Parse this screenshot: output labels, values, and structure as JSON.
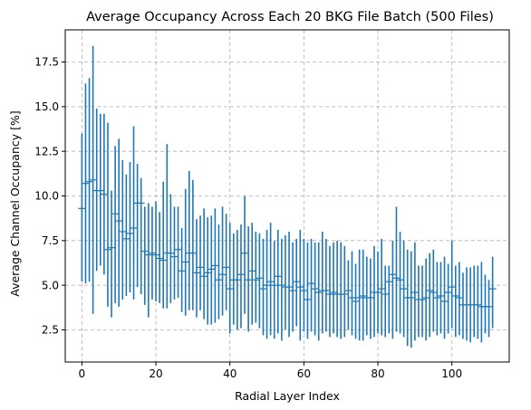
{
  "chart_data": {
    "type": "errorbar",
    "title": "Average Occupancy Across Each 20 BKG File Batch (500 Files)",
    "xlabel": "Radial Layer Index",
    "ylabel": "Average Channel Occupancy [%]",
    "xlim": [
      -4.5,
      115.5
    ],
    "ylim": [
      0.7,
      19.3
    ],
    "xticks": [
      0,
      20,
      40,
      60,
      80,
      100
    ],
    "yticks": [
      2.5,
      5.0,
      7.5,
      10.0,
      12.5,
      15.0,
      17.5
    ],
    "ytick_labels": [
      "2.5",
      "5.0",
      "7.5",
      "10.0",
      "12.5",
      "15.0",
      "17.5"
    ],
    "grid": true,
    "color": "#1f77b4",
    "series": [
      {
        "x": [
          0,
          1,
          2,
          3,
          4,
          5,
          6,
          7,
          8,
          9,
          10,
          11,
          12,
          13,
          14,
          15,
          16,
          17,
          18,
          19,
          20,
          21,
          22,
          23,
          24,
          25,
          26,
          27,
          28,
          29,
          30,
          31,
          32,
          33,
          34,
          35,
          36,
          37,
          38,
          39,
          40,
          41,
          42,
          43,
          44,
          45,
          46,
          47,
          48,
          49,
          50,
          51,
          52,
          53,
          54,
          55,
          56,
          57,
          58,
          59,
          60,
          61,
          62,
          63,
          64,
          65,
          66,
          67,
          68,
          69,
          70,
          71,
          72,
          73,
          74,
          75,
          76,
          77,
          78,
          79,
          80,
          81,
          82,
          83,
          84,
          85,
          86,
          87,
          88,
          89,
          90,
          91,
          92,
          93,
          94,
          95,
          96,
          97,
          98,
          99,
          100,
          101,
          102,
          103,
          104,
          105,
          106,
          107,
          108,
          109,
          110,
          111
        ],
        "y": [
          9.3,
          10.7,
          10.8,
          10.9,
          10.3,
          10.3,
          10.1,
          7.0,
          7.1,
          9.0,
          8.6,
          8.0,
          7.6,
          7.9,
          8.2,
          9.6,
          9.6,
          6.9,
          6.7,
          6.8,
          6.7,
          6.5,
          6.4,
          6.8,
          6.8,
          6.6,
          7.0,
          5.8,
          6.3,
          6.8,
          6.8,
          5.7,
          6.0,
          5.5,
          5.7,
          5.9,
          6.1,
          5.3,
          5.6,
          6.0,
          4.8,
          5.3,
          5.3,
          5.6,
          6.8,
          5.3,
          5.8,
          5.3,
          5.4,
          4.8,
          5.0,
          5.2,
          5.0,
          5.5,
          5.0,
          4.9,
          4.9,
          4.7,
          5.2,
          4.9,
          4.7,
          4.2,
          5.1,
          4.8,
          4.6,
          4.7,
          4.7,
          4.5,
          4.6,
          4.5,
          4.5,
          4.5,
          4.7,
          4.3,
          4.1,
          4.3,
          4.4,
          4.3,
          4.3,
          4.6,
          4.6,
          4.8,
          4.5,
          5.2,
          5.6,
          5.4,
          5.3,
          4.8,
          4.3,
          4.3,
          4.6,
          4.2,
          4.2,
          4.3,
          4.7,
          4.6,
          4.3,
          4.4,
          4.1,
          4.6,
          4.9,
          4.4,
          4.3,
          3.9,
          3.9,
          3.9,
          3.9,
          3.9,
          3.8,
          3.8,
          3.8,
          4.8
        ],
        "low": [
          5.2,
          5.1,
          5.2,
          3.4,
          5.8,
          6.1,
          5.6,
          3.8,
          3.2,
          4.0,
          3.8,
          4.2,
          4.4,
          4.6,
          4.2,
          4.9,
          4.5,
          3.9,
          3.2,
          4.2,
          4.1,
          4.0,
          3.7,
          3.7,
          4.0,
          4.2,
          4.3,
          3.5,
          3.3,
          3.6,
          3.6,
          3.2,
          3.6,
          3.1,
          2.8,
          2.8,
          2.9,
          3.1,
          3.3,
          3.6,
          2.3,
          2.8,
          2.5,
          2.6,
          3.4,
          2.4,
          2.8,
          2.9,
          2.6,
          2.2,
          2.0,
          2.2,
          2.0,
          2.3,
          1.9,
          2.5,
          2.1,
          2.4,
          2.7,
          1.9,
          2.4,
          2.0,
          2.4,
          2.2,
          1.9,
          2.3,
          2.4,
          2.1,
          2.3,
          2.1,
          2.0,
          2.1,
          2.5,
          2.2,
          2.0,
          1.9,
          1.9,
          2.2,
          2.0,
          2.1,
          2.3,
          2.2,
          2.1,
          2.3,
          2.0,
          2.4,
          2.3,
          2.1,
          1.6,
          1.5,
          1.9,
          2.1,
          2.1,
          1.9,
          2.1,
          2.4,
          2.2,
          2.3,
          2.0,
          2.3,
          2.6,
          2.1,
          2.2,
          2.0,
          1.9,
          1.8,
          2.1,
          2.0,
          1.8,
          2.3,
          2.1,
          2.6
        ],
        "high": [
          13.5,
          16.3,
          16.6,
          18.4,
          14.9,
          14.6,
          14.6,
          14.1,
          10.3,
          12.8,
          13.2,
          12.0,
          11.2,
          11.9,
          13.9,
          11.8,
          11.0,
          9.4,
          9.6,
          9.4,
          9.7,
          9.1,
          10.8,
          12.9,
          10.1,
          9.4,
          9.4,
          8.2,
          10.4,
          11.4,
          10.9,
          8.7,
          8.9,
          9.3,
          8.8,
          8.9,
          9.3,
          8.4,
          9.4,
          9.0,
          8.5,
          7.9,
          8.1,
          8.4,
          10.0,
          8.3,
          8.5,
          8.0,
          7.9,
          7.6,
          8.1,
          8.5,
          7.5,
          8.1,
          7.6,
          7.8,
          8.0,
          7.4,
          7.6,
          8.1,
          7.6,
          7.4,
          7.6,
          7.4,
          7.4,
          8.0,
          7.6,
          7.2,
          7.4,
          7.5,
          7.4,
          7.2,
          6.4,
          6.9,
          6.2,
          7.0,
          7.0,
          6.6,
          6.5,
          7.2,
          6.9,
          7.6,
          6.1,
          6.1,
          7.5,
          9.4,
          8.0,
          7.5,
          7.0,
          6.9,
          7.4,
          6.1,
          6.1,
          6.5,
          6.8,
          7.0,
          6.3,
          6.3,
          6.6,
          6.2,
          7.5,
          6.1,
          6.3,
          5.7,
          6.0,
          6.0,
          6.1,
          6.1,
          6.3,
          5.6,
          5.3,
          6.6
        ]
      }
    ]
  }
}
